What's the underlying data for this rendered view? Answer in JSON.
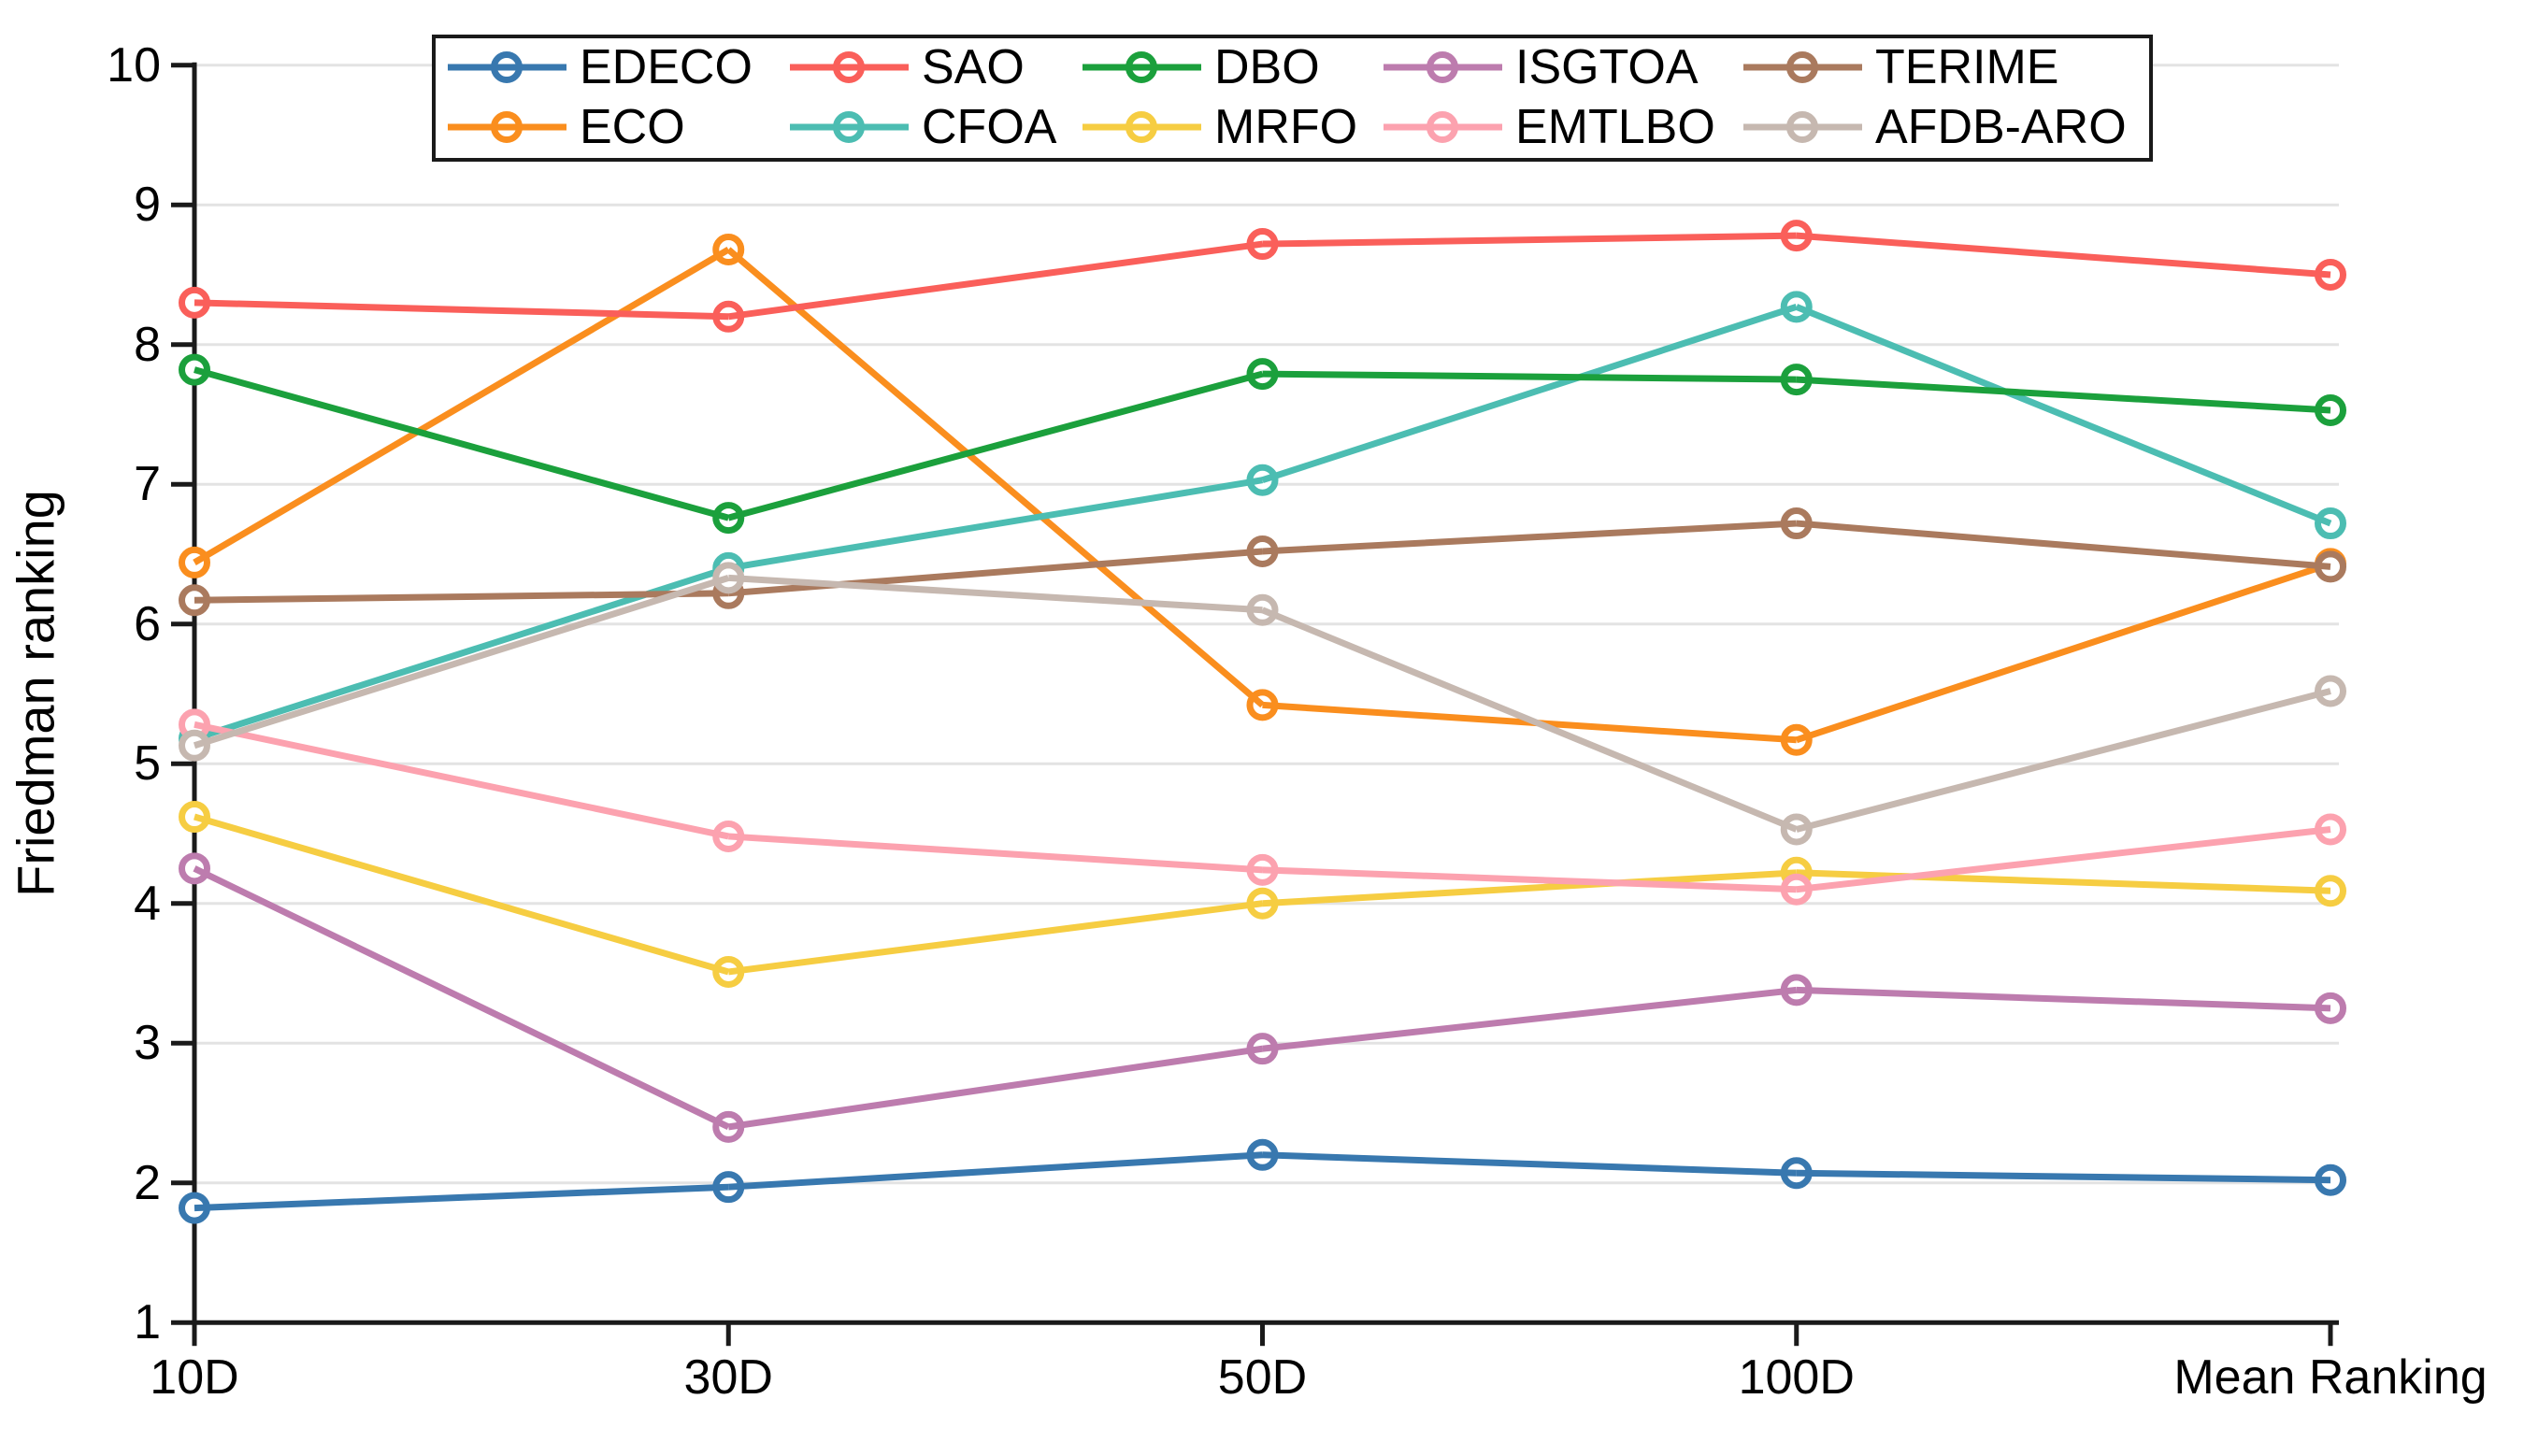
{
  "chart_data": {
    "type": "line",
    "title": "",
    "xlabel": "",
    "ylabel": "Friedman ranking",
    "categories": [
      "10D",
      "30D",
      "50D",
      "100D",
      "Mean Ranking"
    ],
    "ylim": [
      1,
      10
    ],
    "y_ticks": [
      1,
      2,
      3,
      4,
      5,
      6,
      7,
      8,
      9,
      10
    ],
    "grid": "horizontal",
    "gridline_color": "#e3e3e3",
    "axis_color": "#1a1a1a",
    "legend_position": "top",
    "legend_rows": 2,
    "marker": "open-circle",
    "series": [
      {
        "name": "EDECO",
        "color": "#3878AF",
        "values": [
          1.82,
          1.97,
          2.2,
          2.07,
          2.02
        ]
      },
      {
        "name": "SAO",
        "color": "#FA5F5A",
        "values": [
          8.3,
          8.2,
          8.72,
          8.78,
          8.5
        ]
      },
      {
        "name": "DBO",
        "color": "#1BA03C",
        "values": [
          7.82,
          6.76,
          7.79,
          7.75,
          7.53
        ]
      },
      {
        "name": "ISGTOA",
        "color": "#BD7CAE",
        "values": [
          4.25,
          2.4,
          2.96,
          3.38,
          3.25
        ]
      },
      {
        "name": "TERIME",
        "color": "#AA7A5E",
        "values": [
          6.17,
          6.22,
          6.52,
          6.72,
          6.41
        ]
      },
      {
        "name": "ECO",
        "color": "#FA8E1E",
        "values": [
          6.44,
          8.68,
          5.42,
          5.17,
          6.43
        ]
      },
      {
        "name": "CFOA",
        "color": "#4CBDB2",
        "values": [
          5.18,
          6.4,
          7.03,
          8.27,
          6.72
        ]
      },
      {
        "name": "MRFO",
        "color": "#F6CD42",
        "values": [
          4.62,
          3.51,
          4.0,
          4.22,
          4.09
        ]
      },
      {
        "name": "EMTLBO",
        "color": "#FCA2AF",
        "values": [
          5.28,
          4.48,
          4.24,
          4.1,
          4.53
        ]
      },
      {
        "name": "AFDB-ARO",
        "color": "#C6B8B0",
        "values": [
          5.13,
          6.33,
          6.1,
          4.53,
          5.52
        ]
      }
    ]
  }
}
